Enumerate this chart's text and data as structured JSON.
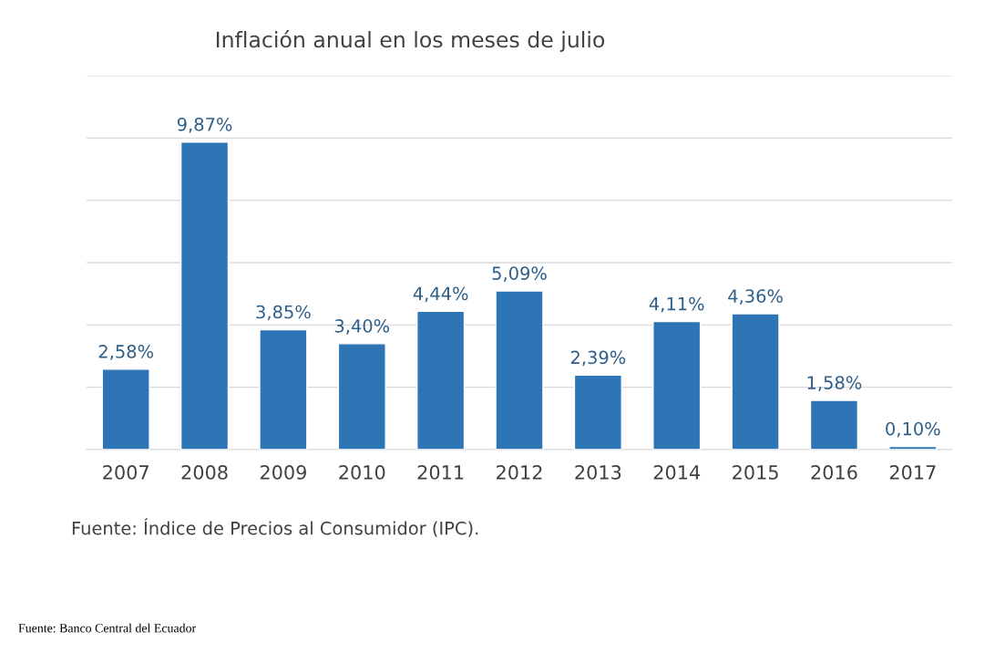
{
  "chart_data": {
    "type": "bar",
    "title": "Inflación anual en los meses de julio",
    "categories": [
      "2007",
      "2008",
      "2009",
      "2010",
      "2011",
      "2012",
      "2013",
      "2014",
      "2015",
      "2016",
      "2017"
    ],
    "values": [
      2.58,
      9.87,
      3.85,
      3.4,
      4.44,
      5.09,
      2.39,
      4.11,
      4.36,
      1.58,
      0.1
    ],
    "value_labels": [
      "2,58%",
      "9,87%",
      "3,85%",
      "3,40%",
      "4,44%",
      "5,09%",
      "2,39%",
      "4,11%",
      "4,36%",
      "1,58%",
      "0,10%"
    ],
    "color": "#2e75b6",
    "ylim": [
      0,
      12
    ],
    "yticks": [
      {
        "value": 0,
        "label": null
      },
      {
        "value": 2,
        "label": null
      },
      {
        "value": 4,
        "label": null
      },
      {
        "value": 6,
        "label": null
      },
      {
        "value": 8,
        "label": null
      },
      {
        "value": 10,
        "label": null
      },
      {
        "value": 12,
        "label": null
      }
    ],
    "grid": "y",
    "tick_labels": "x",
    "annotations": [
      "Fuente: Índice de Precios al Consumidor (IPC).",
      "Fuente: Banco Central del Ecuador"
    ]
  }
}
